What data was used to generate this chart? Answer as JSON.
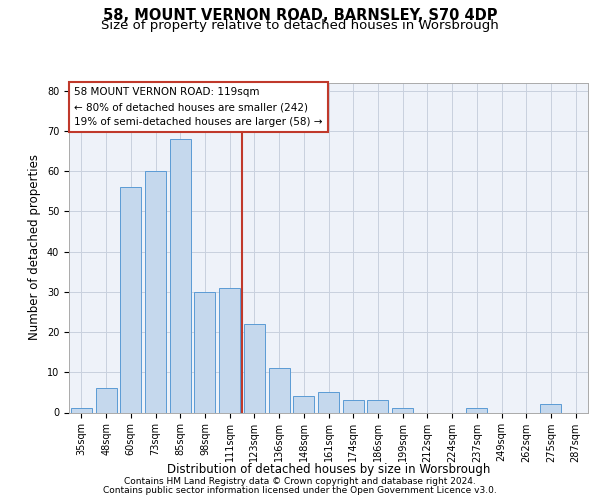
{
  "title": "58, MOUNT VERNON ROAD, BARNSLEY, S70 4DP",
  "subtitle": "Size of property relative to detached houses in Worsbrough",
  "xlabel": "Distribution of detached houses by size in Worsbrough",
  "ylabel": "Number of detached properties",
  "categories": [
    "35sqm",
    "48sqm",
    "60sqm",
    "73sqm",
    "85sqm",
    "98sqm",
    "111sqm",
    "123sqm",
    "136sqm",
    "148sqm",
    "161sqm",
    "174sqm",
    "186sqm",
    "199sqm",
    "212sqm",
    "224sqm",
    "237sqm",
    "249sqm",
    "262sqm",
    "275sqm",
    "287sqm"
  ],
  "values": [
    1,
    6,
    56,
    60,
    68,
    30,
    31,
    22,
    11,
    4,
    5,
    3,
    3,
    1,
    0,
    0,
    1,
    0,
    0,
    2,
    0
  ],
  "bar_color": "#c5d8ed",
  "bar_edge_color": "#5b9bd5",
  "grid_color": "#c8d0de",
  "background_color": "#eef2f9",
  "vline_color": "#c0392b",
  "vline_index": 6.5,
  "annotation_text": "58 MOUNT VERNON ROAD: 119sqm\n← 80% of detached houses are smaller (242)\n19% of semi-detached houses are larger (58) →",
  "annotation_box_color": "#c0392b",
  "ylim": [
    0,
    82
  ],
  "yticks": [
    0,
    10,
    20,
    30,
    40,
    50,
    60,
    70,
    80
  ],
  "footer_line1": "Contains HM Land Registry data © Crown copyright and database right 2024.",
  "footer_line2": "Contains public sector information licensed under the Open Government Licence v3.0.",
  "title_fontsize": 10.5,
  "subtitle_fontsize": 9.5,
  "ylabel_fontsize": 8.5,
  "xlabel_fontsize": 8.5,
  "tick_fontsize": 7,
  "annotation_fontsize": 7.5,
  "footer_fontsize": 6.5
}
